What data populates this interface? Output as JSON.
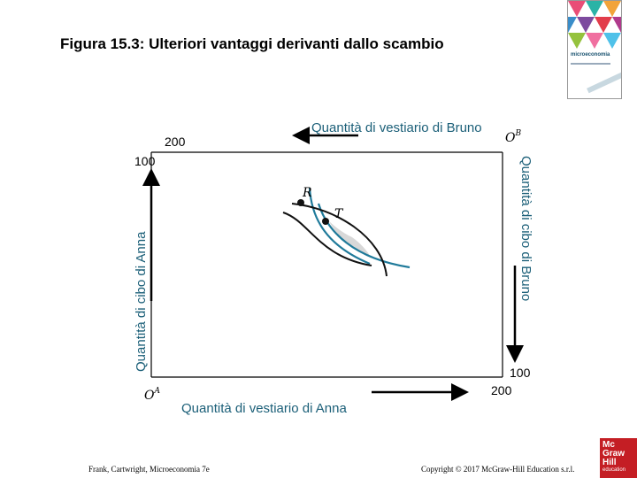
{
  "title": "Figura 15.3: Ulteriori vantaggi derivanti dallo scambio",
  "book_cover": {
    "title": "microeconomia"
  },
  "diagram": {
    "top_axis_label": "Quantità di vestiario di Bruno",
    "right_axis_label": "Quantità di cibo di Bruno",
    "bottom_axis_label": "Quantità di vestiario di Anna",
    "left_axis_label": "Quantità di cibo di Anna",
    "origin_anna": "O",
    "origin_anna_sup": "A",
    "origin_bruno": "O",
    "origin_bruno_sup": "B",
    "tick_top_left_200": "200",
    "tick_left_100": "100",
    "tick_right_100": "100",
    "tick_bottom_200": "200",
    "point_r": "R",
    "point_t": "T",
    "colors": {
      "axis_label": "#1b5f78",
      "anna_curve": "#1f7a9a",
      "bruno_curve": "#111111",
      "lens_fill": "#d8d8d8"
    }
  },
  "footer": {
    "left": "Frank, Cartwright, Microeconomia 7e",
    "right": "Copyright © 2017 McGraw-Hill Education s.r.l."
  },
  "logo": {
    "line1": "Mc",
    "line2": "Graw",
    "line3": "Hill",
    "line4": "education"
  }
}
